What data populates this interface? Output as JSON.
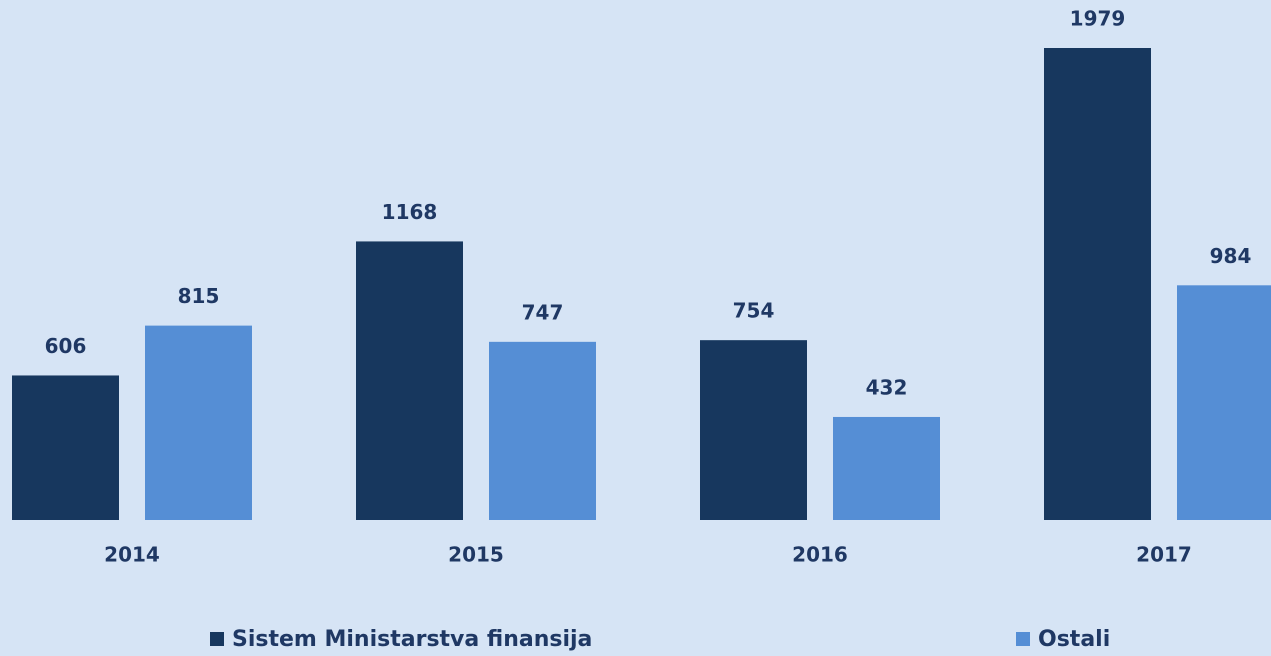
{
  "chart_data": {
    "type": "bar",
    "categories": [
      "2014",
      "2015",
      "2016",
      "2017"
    ],
    "series": [
      {
        "name": "Sistem Ministarstva finansija",
        "color": "#17375e",
        "values": [
          606,
          1168,
          754,
          1979
        ]
      },
      {
        "name": "Ostali",
        "color": "#558ed5",
        "values": [
          815,
          747,
          432,
          984
        ]
      }
    ]
  }
}
